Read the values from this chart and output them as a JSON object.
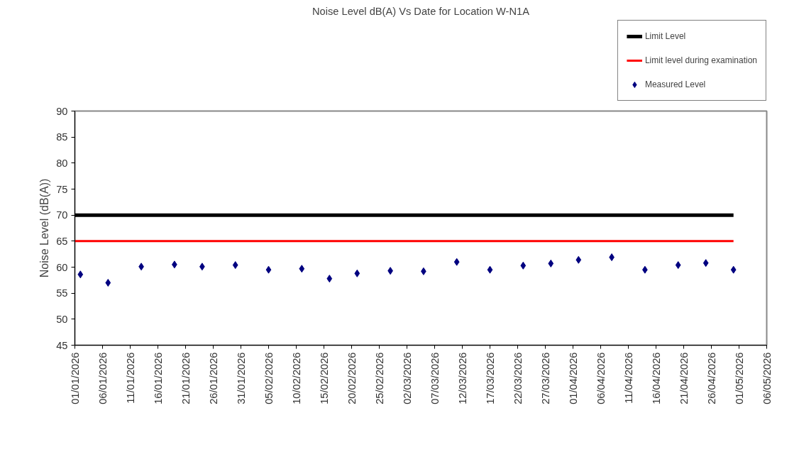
{
  "chart_data": {
    "type": "scatter",
    "title": "Noise Level dB(A) Vs Date for Location W-N1A",
    "ylabel": "Noise Level (dB(A))",
    "series": [
      {
        "name": "Limit Level",
        "type": "line",
        "color": "#000000",
        "x": [
          "2026-01-01",
          "2026-04-30"
        ],
        "values": [
          70,
          70
        ]
      },
      {
        "name": "Limit level during examination",
        "type": "line",
        "color": "#ff0000",
        "x": [
          "2026-01-01",
          "2026-04-30"
        ],
        "values": [
          65,
          65
        ]
      },
      {
        "name": "Measured Level",
        "type": "scatter",
        "color": "#000080",
        "marker": "diamond",
        "x": [
          "2026-01-02",
          "2026-01-07",
          "2026-01-13",
          "2026-01-19",
          "2026-01-24",
          "2026-01-30",
          "2026-02-05",
          "2026-02-11",
          "2026-02-16",
          "2026-02-21",
          "2026-02-27",
          "2026-03-05",
          "2026-03-11",
          "2026-03-17",
          "2026-03-23",
          "2026-03-28",
          "2026-04-02",
          "2026-04-08",
          "2026-04-14",
          "2026-04-20",
          "2026-04-25",
          "2026-04-30"
        ],
        "values": [
          58.6,
          57.0,
          60.1,
          60.5,
          60.1,
          60.4,
          59.5,
          59.7,
          57.8,
          58.8,
          59.3,
          59.2,
          61.0,
          59.5,
          60.3,
          60.7,
          61.4,
          61.9,
          59.5,
          60.4,
          60.8,
          59.5
        ]
      }
    ],
    "xlim": [
      "2026-01-01",
      "2026-05-06"
    ],
    "xticks": [
      {
        "value": "2026-01-01",
        "label": "01/01/2026"
      },
      {
        "value": "2026-01-06",
        "label": "06/01/2026"
      },
      {
        "value": "2026-01-11",
        "label": "11/01/2026"
      },
      {
        "value": "2026-01-16",
        "label": "16/01/2026"
      },
      {
        "value": "2026-01-21",
        "label": "21/01/2026"
      },
      {
        "value": "2026-01-26",
        "label": "26/01/2026"
      },
      {
        "value": "2026-01-31",
        "label": "31/01/2026"
      },
      {
        "value": "2026-02-05",
        "label": "05/02/2026"
      },
      {
        "value": "2026-02-10",
        "label": "10/02/2026"
      },
      {
        "value": "2026-02-15",
        "label": "15/02/2026"
      },
      {
        "value": "2026-02-20",
        "label": "20/02/2026"
      },
      {
        "value": "2026-02-25",
        "label": "25/02/2026"
      },
      {
        "value": "2026-03-02",
        "label": "02/03/2026"
      },
      {
        "value": "2026-03-07",
        "label": "07/03/2026"
      },
      {
        "value": "2026-03-12",
        "label": "12/03/2026"
      },
      {
        "value": "2026-03-17",
        "label": "17/03/2026"
      },
      {
        "value": "2026-03-22",
        "label": "22/03/2026"
      },
      {
        "value": "2026-03-27",
        "label": "27/03/2026"
      },
      {
        "value": "2026-04-01",
        "label": "01/04/2026"
      },
      {
        "value": "2026-04-06",
        "label": "06/04/2026"
      },
      {
        "value": "2026-04-11",
        "label": "11/04/2026"
      },
      {
        "value": "2026-04-16",
        "label": "16/04/2026"
      },
      {
        "value": "2026-04-21",
        "label": "21/04/2026"
      },
      {
        "value": "2026-04-26",
        "label": "26/04/2026"
      },
      {
        "value": "2026-05-01",
        "label": "01/05/2026"
      },
      {
        "value": "2026-05-06",
        "label": "06/05/2026"
      }
    ],
    "ylim": [
      45,
      90
    ],
    "yticks": [
      45,
      50,
      55,
      60,
      65,
      70,
      75,
      80,
      85,
      90
    ],
    "grid": false,
    "legend": "top right"
  }
}
